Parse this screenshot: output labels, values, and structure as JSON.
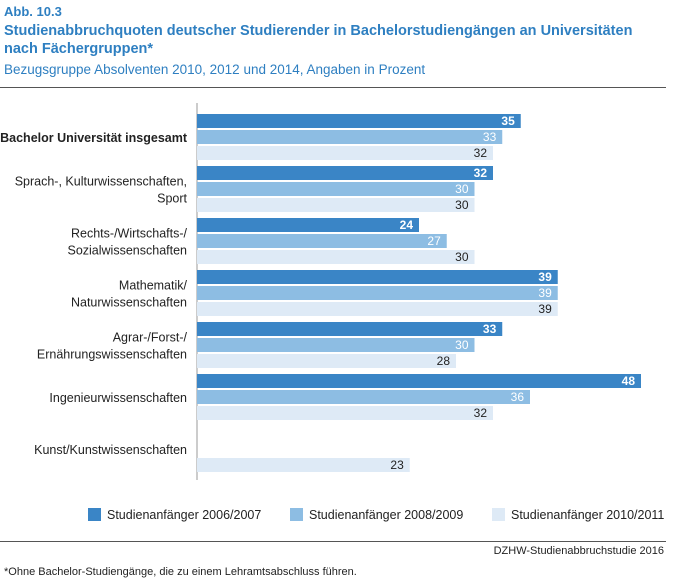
{
  "figure": {
    "number": "Abb. 10.3",
    "title": "Studienabbruchquoten deutscher Studierender in Bachelorstudiengängen an Universitäten nach Fächergruppen*",
    "subtitle": "Bezugsgruppe Absolventen 2010, 2012 und 2014, Angaben in Prozent",
    "source": "DZHW-Studienabbruchstudie 2016",
    "footnote": "*Ohne Bachelor-Studiengänge, die zu einem Lehramtsabschluss führen."
  },
  "colors": {
    "accent": "#2e7fc1",
    "series": [
      "#3a85c6",
      "#8dbde3",
      "#deeaf6"
    ]
  },
  "chart_data": {
    "type": "bar",
    "orientation": "horizontal",
    "grid": false,
    "legend_position": "bottom",
    "categories": [
      [
        "Bachelor Universität insgesamt"
      ],
      [
        "Sprach-, Kulturwissenschaften,",
        "Sport"
      ],
      [
        "Rechts-/Wirtschafts-/",
        "Sozialwissenschaften"
      ],
      [
        "Mathematik/",
        "Naturwissenschaften"
      ],
      [
        "Agrar-/Forst-/",
        "Ernährungswissenschaften"
      ],
      [
        "Ingenieurwissenschaften"
      ],
      [
        "Kunst/Kunstwissenschaften"
      ]
    ],
    "bold_categories": [
      0
    ],
    "series": [
      {
        "name": "Studienanfänger 2006/2007",
        "values": [
          35,
          32,
          24,
          39,
          33,
          48,
          null
        ]
      },
      {
        "name": "Studienanfänger 2008/2009",
        "values": [
          33,
          30,
          27,
          39,
          30,
          36,
          null
        ]
      },
      {
        "name": "Studienanfänger 2010/2011",
        "values": [
          32,
          30,
          30,
          39,
          28,
          32,
          23
        ]
      }
    ],
    "xlim": [
      0,
      48
    ]
  }
}
